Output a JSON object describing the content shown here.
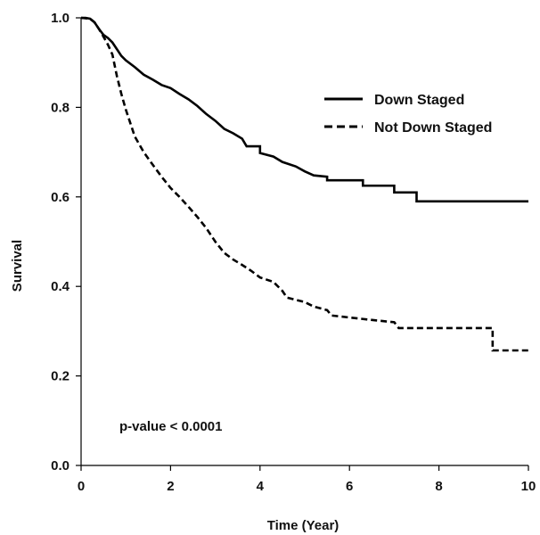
{
  "chart_data": {
    "type": "line",
    "title": "",
    "xlabel": "Time (Year)",
    "ylabel": "Survival",
    "xlim": [
      0,
      10
    ],
    "ylim": [
      0.0,
      1.0
    ],
    "x_ticks": [
      "0",
      "2",
      "4",
      "6",
      "8",
      "10"
    ],
    "y_ticks": [
      "0.0",
      "0.2",
      "0.4",
      "0.6",
      "0.8",
      "1.0"
    ],
    "grid": false,
    "legend_position": "top-right",
    "series": [
      {
        "name": "Down Staged",
        "line_style": "solid",
        "color": "#000000",
        "points": [
          [
            0.0,
            1.0
          ],
          [
            0.1,
            1.0
          ],
          [
            0.2,
            0.998
          ],
          [
            0.3,
            0.99
          ],
          [
            0.4,
            0.975
          ],
          [
            0.5,
            0.962
          ],
          [
            0.6,
            0.955
          ],
          [
            0.7,
            0.945
          ],
          [
            0.8,
            0.93
          ],
          [
            0.9,
            0.915
          ],
          [
            1.0,
            0.905
          ],
          [
            1.2,
            0.89
          ],
          [
            1.4,
            0.873
          ],
          [
            1.6,
            0.862
          ],
          [
            1.8,
            0.85
          ],
          [
            2.0,
            0.843
          ],
          [
            2.2,
            0.83
          ],
          [
            2.4,
            0.818
          ],
          [
            2.6,
            0.803
          ],
          [
            2.8,
            0.785
          ],
          [
            3.0,
            0.77
          ],
          [
            3.2,
            0.752
          ],
          [
            3.4,
            0.742
          ],
          [
            3.6,
            0.73
          ],
          [
            3.7,
            0.713
          ],
          [
            4.0,
            0.713
          ],
          [
            4.0,
            0.698
          ],
          [
            4.3,
            0.69
          ],
          [
            4.5,
            0.678
          ],
          [
            4.8,
            0.668
          ],
          [
            5.0,
            0.657
          ],
          [
            5.2,
            0.648
          ],
          [
            5.5,
            0.645
          ],
          [
            5.5,
            0.637
          ],
          [
            6.3,
            0.637
          ],
          [
            6.3,
            0.625
          ],
          [
            7.0,
            0.625
          ],
          [
            7.0,
            0.61
          ],
          [
            7.5,
            0.61
          ],
          [
            7.5,
            0.59
          ],
          [
            10.0,
            0.59
          ]
        ]
      },
      {
        "name": "Not Down Staged",
        "line_style": "dashed",
        "color": "#000000",
        "points": [
          [
            0.0,
            1.0
          ],
          [
            0.2,
            0.998
          ],
          [
            0.3,
            0.99
          ],
          [
            0.4,
            0.975
          ],
          [
            0.5,
            0.958
          ],
          [
            0.6,
            0.94
          ],
          [
            0.7,
            0.918
          ],
          [
            0.8,
            0.87
          ],
          [
            0.9,
            0.83
          ],
          [
            1.0,
            0.795
          ],
          [
            1.1,
            0.765
          ],
          [
            1.2,
            0.735
          ],
          [
            1.4,
            0.7
          ],
          [
            1.6,
            0.672
          ],
          [
            1.8,
            0.645
          ],
          [
            2.0,
            0.62
          ],
          [
            2.2,
            0.6
          ],
          [
            2.4,
            0.578
          ],
          [
            2.6,
            0.555
          ],
          [
            2.8,
            0.53
          ],
          [
            3.0,
            0.5
          ],
          [
            3.2,
            0.475
          ],
          [
            3.4,
            0.46
          ],
          [
            3.6,
            0.448
          ],
          [
            3.8,
            0.435
          ],
          [
            4.0,
            0.42
          ],
          [
            4.3,
            0.41
          ],
          [
            4.5,
            0.39
          ],
          [
            4.6,
            0.375
          ],
          [
            5.0,
            0.365
          ],
          [
            5.2,
            0.355
          ],
          [
            5.5,
            0.347
          ],
          [
            5.6,
            0.335
          ],
          [
            6.5,
            0.325
          ],
          [
            7.0,
            0.32
          ],
          [
            7.1,
            0.307
          ],
          [
            9.2,
            0.307
          ],
          [
            9.2,
            0.257
          ],
          [
            10.0,
            0.257
          ]
        ]
      }
    ],
    "annotations": [
      {
        "text": "p-value < 0.0001"
      }
    ]
  }
}
